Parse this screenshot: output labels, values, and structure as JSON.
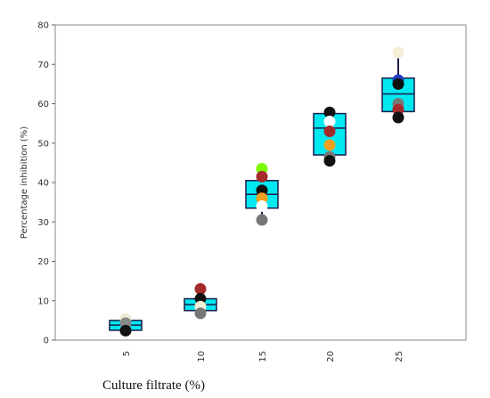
{
  "chart_data": {
    "type": "box",
    "x_label": "Culture filtrate (%)",
    "y_label": "Percentage inhibition (%)",
    "categories": [
      "5",
      "10",
      "15",
      "20",
      "25"
    ],
    "ylim": [
      0,
      80
    ],
    "yticks": [
      0,
      10,
      20,
      30,
      40,
      50,
      60,
      70,
      80
    ],
    "box_color": "#00e8f0",
    "boxes": [
      {
        "min": 2,
        "q1": 2.5,
        "median": 3.8,
        "q3": 5,
        "max": 5.5
      },
      {
        "min": 6.5,
        "q1": 7.5,
        "median": 9,
        "q3": 10.5,
        "max": 13
      },
      {
        "min": 30.5,
        "q1": 33.5,
        "median": 37,
        "q3": 40.5,
        "max": 43.5
      },
      {
        "min": 45.5,
        "q1": 47,
        "median": 53.8,
        "q3": 57.5,
        "max": 58
      },
      {
        "min": 56.5,
        "q1": 58,
        "median": 62.5,
        "q3": 66.5,
        "max": 73
      }
    ],
    "points": [
      [
        {
          "value": 5.3,
          "color": "#eee8d0"
        },
        {
          "value": 4.3,
          "color": "#888888"
        },
        {
          "value": 2.4,
          "color": "#111111"
        }
      ],
      [
        {
          "value": 13,
          "color": "#a52a2a"
        },
        {
          "value": 10.5,
          "color": "#111111"
        },
        {
          "value": 8.5,
          "color": "#f5f0d8"
        },
        {
          "value": 6.8,
          "color": "#777777"
        }
      ],
      [
        {
          "value": 43.5,
          "color": "#7cfc00"
        },
        {
          "value": 41.5,
          "color": "#a52a2a"
        },
        {
          "value": 38,
          "color": "#111111"
        },
        {
          "value": 36,
          "color": "#f0a020"
        },
        {
          "value": 34,
          "color": "#ffffff"
        },
        {
          "value": 30.5,
          "color": "#777777"
        }
      ],
      [
        {
          "value": 57.8,
          "color": "#111111"
        },
        {
          "value": 55.5,
          "color": "#ffffff"
        },
        {
          "value": 53,
          "color": "#a52a2a"
        },
        {
          "value": 49.5,
          "color": "#f0a020"
        },
        {
          "value": 46.5,
          "color": "#777777"
        },
        {
          "value": 45.5,
          "color": "#111111"
        }
      ],
      [
        {
          "value": 73,
          "color": "#f5f0d8"
        },
        {
          "value": 66,
          "color": "#1f3fbf"
        },
        {
          "value": 65,
          "color": "#111111"
        },
        {
          "value": 60,
          "color": "#777777"
        },
        {
          "value": 58.5,
          "color": "#a52a2a"
        },
        {
          "value": 56.5,
          "color": "#111111"
        }
      ]
    ]
  }
}
